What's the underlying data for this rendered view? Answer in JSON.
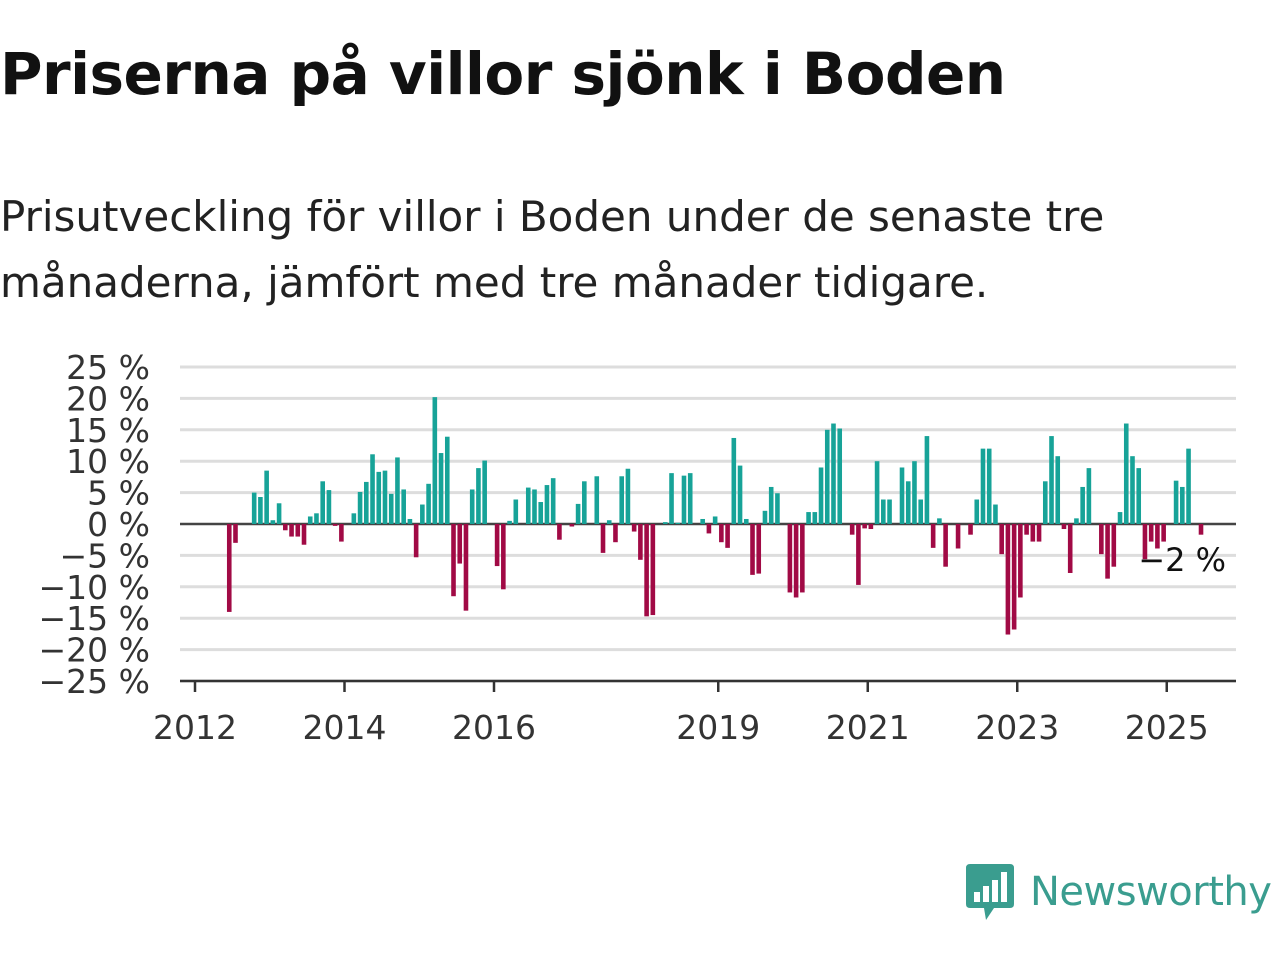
{
  "title": "Priserna på villor sjönk i Boden",
  "subtitle": "Prisutveckling för villor i Boden under de senaste tre månaderna, jämfört med tre månader tidigare.",
  "brand": {
    "name": "Newsworthy",
    "icon": "newsworthy-logo-icon",
    "color": "#3a9d8f"
  },
  "colors": {
    "positive": "#17a398",
    "negative": "#a10a45",
    "grid": "#dddddd",
    "axis": "#333333"
  },
  "chart_data": {
    "type": "bar",
    "x_unit": "month",
    "start": "2012-01",
    "y_tick_labels": [
      "25 %",
      "20 %",
      "15 %",
      "10 %",
      "5 %",
      "0 %",
      "−5 %",
      "−10 %",
      "−15 %",
      "−20 %",
      "−25 %"
    ],
    "y_ticks": [
      25,
      20,
      15,
      10,
      5,
      0,
      -5,
      -10,
      -15,
      -20,
      -25
    ],
    "ylim": [
      -25,
      25
    ],
    "x_tick_labels": [
      "2012",
      "2014",
      "2016",
      "2019",
      "2021",
      "2023",
      "2025"
    ],
    "x_ticks": [
      "2012-01",
      "2014-01",
      "2016-01",
      "2019-01",
      "2021-01",
      "2023-01",
      "2025-01"
    ],
    "annotation": {
      "text": "−2 %",
      "at": "2025-03"
    },
    "grid": true,
    "values": [
      null,
      null,
      null,
      null,
      null,
      -14,
      -3,
      null,
      null,
      5,
      4.3,
      8.5,
      0.6,
      3.3,
      -1,
      -2,
      -2,
      -3.3,
      1.2,
      1.7,
      6.8,
      5.4,
      -0.3,
      -2.8,
      null,
      1.7,
      5.1,
      6.7,
      11.1,
      8.3,
      8.5,
      4.8,
      10.6,
      5.5,
      0.8,
      -5.3,
      3.1,
      6.4,
      20.2,
      11.3,
      13.9,
      -11.5,
      -6.3,
      -13.8,
      5.5,
      8.9,
      10.1,
      null,
      -6.7,
      -10.4,
      0.5,
      3.9,
      null,
      5.8,
      5.5,
      3.5,
      6.2,
      7.3,
      -2.5,
      null,
      -0.4,
      3.2,
      6.8,
      null,
      7.6,
      -4.6,
      0.6,
      -2.9,
      7.6,
      8.8,
      -1.2,
      -5.7,
      -14.7,
      -14.5,
      null,
      0.3,
      8.1,
      0.2,
      7.7,
      8.1,
      null,
      0.8,
      -1.5,
      1.2,
      -2.9,
      -3.8,
      13.7,
      9.3,
      0.8,
      -8.1,
      -7.9,
      2.1,
      5.9,
      4.9,
      null,
      -10.9,
      -11.7,
      -10.9,
      1.9,
      1.9,
      9,
      15,
      16,
      15.2,
      null,
      -1.7,
      -9.7,
      -0.7,
      -0.8,
      10,
      3.9,
      3.9,
      null,
      9,
      6.8,
      10,
      3.9,
      14,
      -3.8,
      0.9,
      -6.8,
      null,
      -3.9,
      null,
      -1.7,
      3.9,
      12,
      12,
      3.1,
      -4.8,
      -17.6,
      -16.8,
      -11.7,
      -1.7,
      -2.8,
      -2.8,
      6.8,
      14,
      10.8,
      -0.8,
      -7.8,
      0.9,
      5.9,
      8.9,
      null,
      -4.8,
      -8.7,
      -6.8,
      1.9,
      16,
      10.8,
      8.9,
      -5.6,
      -2.8,
      -3.9,
      -2.8,
      null,
      6.9,
      5.9,
      12,
      null,
      -1.7
    ]
  }
}
